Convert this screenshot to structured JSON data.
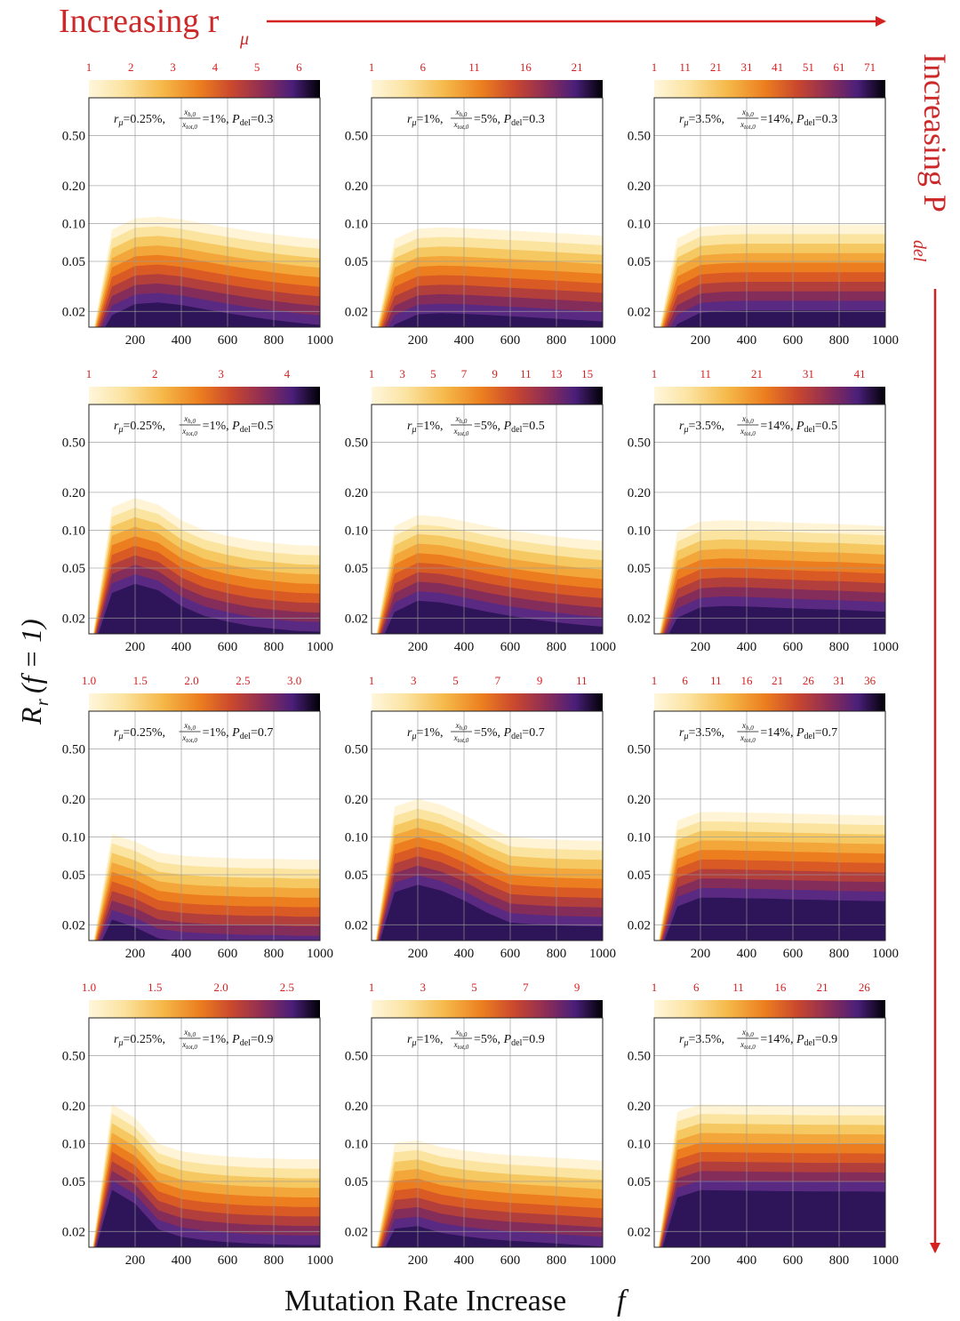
{
  "header": {
    "top_label": "Increasing r",
    "top_label_sub": "μ",
    "right_label": "Increasing P",
    "right_label_sub": "del",
    "arrow_color": "#d42020"
  },
  "axes": {
    "ylabel": "Rr(f = 1)",
    "ylabel_main": "R",
    "ylabel_sub": "r",
    "ylabel_args": "(f = 1)",
    "xlabel": "Mutation Rate Increase f",
    "xlabel_main": "Mutation Rate Increase",
    "xlabel_var": "f"
  },
  "chart_data": {
    "type": "heatmap",
    "description_scale": "contour fill, inferno-like colormap",
    "x_ticks": [
      200,
      400,
      600,
      800,
      1000
    ],
    "x_tick_labels": [
      "200",
      "400",
      "600",
      "800",
      "1000"
    ],
    "xlim": [
      0,
      1000
    ],
    "y_scale": "log",
    "y_ticks": [
      0.02,
      0.05,
      0.1,
      0.2,
      0.5
    ],
    "y_tick_labels": [
      "0.02",
      "0.05",
      "0.10",
      "0.20",
      "0.50"
    ],
    "ylim": [
      0.015,
      1.0
    ],
    "grid": true,
    "colormap": [
      "#fff4d6",
      "#fbe3a0",
      "#f6c862",
      "#f3a63a",
      "#ec7e1f",
      "#d95a25",
      "#b23f3c",
      "#842c5a",
      "#5a2a82",
      "#2e1458",
      "#000000"
    ],
    "panels": [
      [
        {
          "r_mu": "0.25%",
          "ratio": "1%",
          "p_del": "0.3",
          "cb_ticks": [
            "1",
            "2",
            "3",
            "4",
            "5",
            "6"
          ],
          "top": [
            0.0,
            0.1,
            0.11,
            0.113,
            0.108,
            0.1,
            0.093,
            0.087,
            0.082,
            0.078,
            0.075
          ]
        },
        {
          "r_mu": "1%",
          "ratio": "5%",
          "p_del": "0.3",
          "cb_ticks": [
            "1",
            "6",
            "11",
            "16",
            "21"
          ],
          "top": [
            0.0,
            0.084,
            0.091,
            0.093,
            0.092,
            0.09,
            0.088,
            0.086,
            0.084,
            0.082,
            0.08
          ]
        },
        {
          "r_mu": "3.5%",
          "ratio": "14%",
          "p_del": "0.3",
          "cb_ticks": [
            "1",
            "11",
            "21",
            "31",
            "41",
            "51",
            "61",
            "71"
          ],
          "top": [
            0.0,
            0.085,
            0.094,
            0.097,
            0.098,
            0.098,
            0.098,
            0.098,
            0.098,
            0.098,
            0.098
          ]
        }
      ],
      [
        {
          "r_mu": "0.25%",
          "ratio": "1%",
          "p_del": "0.5",
          "cb_ticks": [
            "1",
            "2",
            "3",
            "4"
          ],
          "top": [
            0.0,
            0.17,
            0.18,
            0.16,
            0.12,
            0.1,
            0.09,
            0.083,
            0.079,
            0.076,
            0.075
          ]
        },
        {
          "r_mu": "1%",
          "ratio": "5%",
          "p_del": "0.5",
          "cb_ticks": [
            "1",
            "3",
            "5",
            "7",
            "9",
            "11",
            "13",
            "15"
          ],
          "top": [
            0.0,
            0.12,
            0.132,
            0.128,
            0.118,
            0.108,
            0.1,
            0.094,
            0.089,
            0.085,
            0.082
          ]
        },
        {
          "r_mu": "3.5%",
          "ratio": "14%",
          "p_del": "0.5",
          "cb_ticks": [
            "1",
            "11",
            "21",
            "31",
            "41"
          ],
          "top": [
            0.0,
            0.108,
            0.117,
            0.12,
            0.119,
            0.117,
            0.115,
            0.113,
            0.112,
            0.11,
            0.108
          ]
        }
      ],
      [
        {
          "r_mu": "0.25%",
          "ratio": "1%",
          "p_del": "0.7",
          "cb_ticks": [
            "1.0",
            "1.5",
            "2.0",
            "2.5",
            "3.0"
          ],
          "top": [
            0.0,
            0.118,
            0.092,
            0.075,
            0.071,
            0.069,
            0.068,
            0.067,
            0.067,
            0.066,
            0.066
          ]
        },
        {
          "r_mu": "1%",
          "ratio": "5%",
          "p_del": "0.7",
          "cb_ticks": [
            "1",
            "3",
            "5",
            "7",
            "9",
            "11"
          ],
          "top": [
            0.0,
            0.195,
            0.2,
            0.18,
            0.15,
            0.12,
            0.1,
            0.097,
            0.095,
            0.094,
            0.093
          ]
        },
        {
          "r_mu": "3.5%",
          "ratio": "14%",
          "p_del": "0.7",
          "cb_ticks": [
            "1",
            "6",
            "11",
            "16",
            "21",
            "26",
            "31",
            "36"
          ],
          "top": [
            0.0,
            0.15,
            0.158,
            0.158,
            0.156,
            0.155,
            0.153,
            0.152,
            0.15,
            0.149,
            0.148
          ]
        }
      ],
      [
        {
          "r_mu": "0.25%",
          "ratio": "1%",
          "p_del": "0.9",
          "cb_ticks": [
            "1.0",
            "1.5",
            "2.0",
            "2.5"
          ],
          "top": [
            0.0,
            0.23,
            0.16,
            0.1,
            0.087,
            0.082,
            0.079,
            0.077,
            0.076,
            0.075,
            0.075
          ]
        },
        {
          "r_mu": "1%",
          "ratio": "5%",
          "p_del": "0.9",
          "cb_ticks": [
            "1",
            "3",
            "5",
            "7",
            "9"
          ],
          "top": [
            0.0,
            0.113,
            0.106,
            0.094,
            0.088,
            0.084,
            0.081,
            0.079,
            0.077,
            0.075,
            0.073
          ]
        },
        {
          "r_mu": "3.5%",
          "ratio": "14%",
          "p_del": "0.9",
          "cb_ticks": [
            "1",
            "6",
            "11",
            "16",
            "21",
            "26"
          ],
          "top": [
            0.0,
            0.2,
            0.205,
            0.204,
            0.203,
            0.202,
            0.201,
            0.2,
            0.2,
            0.2,
            0.199
          ]
        }
      ]
    ]
  }
}
